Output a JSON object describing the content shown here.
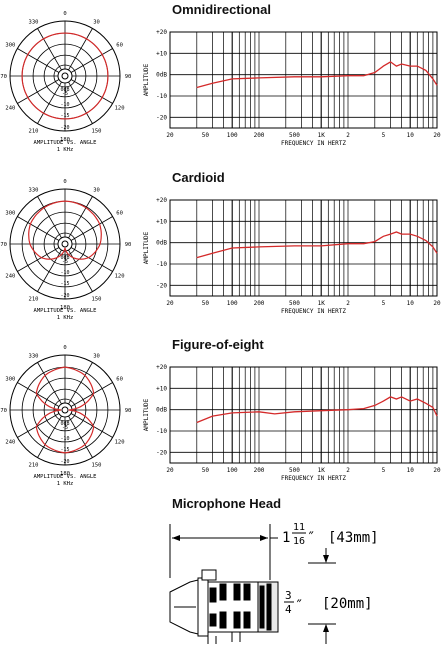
{
  "colors": {
    "response": "#d42a2a",
    "grid": "#000000"
  },
  "polar_labels": {
    "angles": [
      "0",
      "30",
      "60",
      "90",
      "120",
      "150",
      "180",
      "210",
      "240",
      "270",
      "300",
      "330"
    ],
    "rings": [
      "-5",
      "-10",
      "-15",
      "-20",
      "0dB"
    ],
    "caption_line1": "AMPLITUDE VS. ANGLE",
    "caption_line2": "1 KHz"
  },
  "freq_labels": {
    "ylabel": "AMPLITUDE",
    "xlabel": "FREQUENCY IN HERTZ",
    "y_ticks": [
      "+20",
      "+10",
      "0dB",
      "-10",
      "-20"
    ],
    "x_ticks": [
      "20",
      "50",
      "100",
      "200",
      "500",
      "1K",
      "2",
      "5",
      "10",
      "20"
    ]
  },
  "sections": [
    {
      "title": "Omnidirectional"
    },
    {
      "title": "Cardioid"
    },
    {
      "title": "Figure-of-eight"
    },
    {
      "title": "Microphone Head"
    }
  ],
  "chart_data": [
    {
      "type": "line",
      "title": "Omnidirectional",
      "xlabel": "FREQUENCY IN HERTZ",
      "ylabel": "AMPLITUDE",
      "x_scale": "log",
      "xlim": [
        20,
        20000
      ],
      "ylim": [
        -25,
        20
      ],
      "x": [
        40,
        60,
        100,
        200,
        500,
        1000,
        2000,
        3000,
        4000,
        5000,
        6000,
        7000,
        8000,
        10000,
        12000,
        15000,
        18000,
        20000
      ],
      "y": [
        -6,
        -4,
        -2,
        -1.5,
        -1,
        -1,
        -0.5,
        -0.5,
        1,
        4,
        6,
        4,
        5,
        4,
        4,
        2,
        -2,
        -5
      ]
    },
    {
      "type": "line",
      "title": "Cardioid",
      "xlabel": "FREQUENCY IN HERTZ",
      "ylabel": "AMPLITUDE",
      "x_scale": "log",
      "xlim": [
        20,
        20000
      ],
      "ylim": [
        -25,
        20
      ],
      "x": [
        40,
        60,
        100,
        200,
        500,
        1000,
        2000,
        3000,
        4000,
        5000,
        6000,
        7000,
        8000,
        10000,
        12000,
        15000,
        18000,
        20000
      ],
      "y": [
        -7,
        -5,
        -2.5,
        -2,
        -1.5,
        -1.5,
        -0.5,
        -0.5,
        0.5,
        3,
        4,
        5,
        4,
        4,
        3,
        1,
        -2,
        -5
      ]
    },
    {
      "type": "line",
      "title": "Figure-of-eight",
      "xlabel": "FREQUENCY IN HERTZ",
      "ylabel": "AMPLITUDE",
      "x_scale": "log",
      "xlim": [
        20,
        20000
      ],
      "ylim": [
        -25,
        20
      ],
      "x": [
        40,
        60,
        100,
        200,
        300,
        500,
        1000,
        2000,
        3000,
        4000,
        5000,
        6000,
        7000,
        8000,
        10000,
        12000,
        15000,
        18000,
        20000
      ],
      "y": [
        -6,
        -3,
        -1.5,
        -1,
        -2,
        -1,
        -0.5,
        0,
        0.5,
        2,
        4,
        6,
        5,
        6,
        4,
        5,
        3,
        1,
        -3
      ]
    },
    {
      "type": "polar",
      "caption": "AMPLITUDE VS. ANGLE 1 KHz",
      "pattern": "omnidirectional",
      "theta_deg": [
        0,
        30,
        60,
        90,
        120,
        150,
        180,
        210,
        240,
        270,
        300,
        330
      ],
      "level_db": [
        0,
        0,
        0,
        0,
        0,
        0,
        0,
        0,
        0,
        0,
        0,
        0
      ]
    },
    {
      "type": "polar",
      "caption": "AMPLITUDE VS. ANGLE 1 KHz",
      "pattern": "cardioid",
      "theta_deg": [
        0,
        30,
        60,
        90,
        120,
        150,
        180,
        210,
        240,
        270,
        300,
        330
      ],
      "level_db": [
        0,
        -0.5,
        -1.5,
        -4,
        -8,
        -14,
        -20,
        -14,
        -8,
        -4,
        -1.5,
        -0.5
      ]
    },
    {
      "type": "polar",
      "caption": "AMPLITUDE VS. ANGLE 1 KHz",
      "pattern": "figure-of-eight",
      "theta_deg": [
        0,
        30,
        60,
        90,
        120,
        150,
        180,
        210,
        240,
        270,
        300,
        330
      ],
      "level_db": [
        0,
        -1.5,
        -5,
        -20,
        -5,
        -1.5,
        0,
        -1.5,
        -5,
        -20,
        -5,
        -1.5
      ]
    }
  ],
  "mic_head": {
    "length_whole": "1",
    "length_num": "11",
    "length_den": "16",
    "length_mm": "[43mm]",
    "diam_num": "3",
    "diam_den": "4",
    "diam_mm": "[20mm]",
    "inch_mark": "″"
  }
}
